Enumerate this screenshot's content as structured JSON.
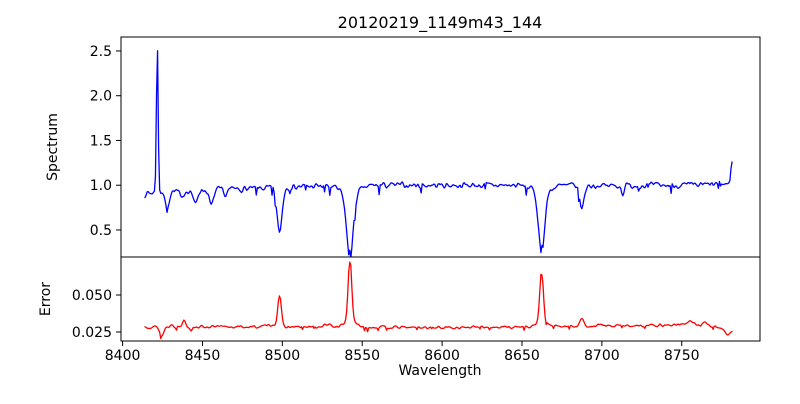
{
  "figure": {
    "title": "20120219_1149m43_144",
    "background": "#ffffff"
  },
  "chart_data": {
    "type": "line",
    "title": "20120219_1149m43_144",
    "xlabel": "Wavelength",
    "grid": false,
    "legend": null,
    "colors": {
      "spectrum": "#0000ff",
      "error": "#ff0000",
      "axis": "#000000"
    },
    "subplots": [
      {
        "name": "spectrum",
        "ylabel": "Spectrum",
        "line_color": "#0000ff",
        "xlim": [
          8399,
          8799
        ],
        "ylim": [
          0.198,
          2.656
        ],
        "yticks": {
          "values": [
            0.5,
            1.0,
            1.5,
            2.0,
            2.5
          ],
          "labels": [
            "0.5",
            "1.0",
            "1.5",
            "2.0",
            "2.5"
          ]
        },
        "xticks": {
          "values": [],
          "labels": []
        },
        "data_x_range": [
          8414,
          8781.5
        ],
        "baseline_level": 0.97,
        "key_points": [
          [
            8414,
            0.9
          ],
          [
            8421.7,
            2.51
          ],
          [
            8427.8,
            0.76
          ],
          [
            8445.5,
            0.8
          ],
          [
            8455.5,
            0.78
          ],
          [
            8498.2,
            0.46
          ],
          [
            8542.3,
            0.27
          ],
          [
            8662.3,
            0.33
          ],
          [
            8687.5,
            0.75
          ],
          [
            8781.3,
            1.26
          ]
        ],
        "synthesis": {
          "n_points": 560,
          "seed": 7,
          "noise_amp": 0.045,
          "dip_prob": 0.05,
          "dip_scale": 1.6,
          "baseline": [
            [
              8414,
              0.905
            ],
            [
              8425,
              0.93
            ],
            [
              8450,
              0.945
            ],
            [
              8480,
              0.96
            ],
            [
              8510,
              0.985
            ],
            [
              8560,
              1.0
            ],
            [
              8620,
              1.0
            ],
            [
              8700,
              0.995
            ],
            [
              8760,
              1.0
            ],
            [
              8781.5,
              1.02
            ]
          ],
          "features": [
            {
              "c": 8421.7,
              "s": 0.55,
              "a": 1.58,
              "anchor": true
            },
            {
              "c": 8427.8,
              "s": 1.2,
              "a": -0.19
            },
            {
              "c": 8437.0,
              "s": 1.0,
              "a": -0.1
            },
            {
              "c": 8445.5,
              "s": 1.2,
              "a": -0.16
            },
            {
              "c": 8455.5,
              "s": 1.3,
              "a": -0.18
            },
            {
              "c": 8464.0,
              "s": 0.9,
              "a": -0.08
            },
            {
              "c": 8498.2,
              "s": 1.6,
              "a": -0.5,
              "anchor": true
            },
            {
              "c": 8542.3,
              "s": 2.0,
              "a": -0.72,
              "anchor": true
            },
            {
              "c": 8542.3,
              "s": 5.5,
              "a": -0.1
            },
            {
              "c": 8662.3,
              "s": 1.9,
              "a": -0.67,
              "anchor": true
            },
            {
              "c": 8662.3,
              "s": 5.0,
              "a": -0.08
            },
            {
              "c": 8687.5,
              "s": 1.3,
              "a": -0.26
            },
            {
              "c": 8713.0,
              "s": 0.8,
              "a": -0.09
            },
            {
              "c": 8781.3,
              "s": 0.5,
              "a": 0.24,
              "anchor": true
            }
          ]
        }
      },
      {
        "name": "error",
        "ylabel": "Error",
        "line_color": "#ff0000",
        "xlim": [
          8399,
          8799
        ],
        "ylim": [
          0.0189,
          0.0757
        ],
        "yticks": {
          "values": [
            0.025,
            0.05
          ],
          "labels": [
            "0.025",
            "0.050"
          ]
        },
        "xticks": {
          "values": [
            8400,
            8450,
            8500,
            8550,
            8600,
            8650,
            8700,
            8750
          ],
          "labels": [
            "8400",
            "8450",
            "8500",
            "8550",
            "8600",
            "8650",
            "8700",
            "8750"
          ]
        },
        "data_x_range": [
          8414,
          8781.5
        ],
        "baseline_level": 0.028,
        "key_points": [
          [
            8424.5,
            0.022
          ],
          [
            8438.5,
            0.033
          ],
          [
            8498.2,
            0.05
          ],
          [
            8542.3,
            0.072
          ],
          [
            8662.3,
            0.064
          ],
          [
            8687.5,
            0.033
          ],
          [
            8755,
            0.032
          ],
          [
            8781,
            0.024
          ]
        ],
        "synthesis": {
          "n_points": 560,
          "seed": 13,
          "noise_amp": 0.0012,
          "dip_prob": 0.03,
          "dip_scale": 1.5,
          "baseline": [
            [
              8414,
              0.0285
            ],
            [
              8460,
              0.0285
            ],
            [
              8520,
              0.0283
            ],
            [
              8600,
              0.028
            ],
            [
              8660,
              0.0285
            ],
            [
              8700,
              0.029
            ],
            [
              8745,
              0.0298
            ],
            [
              8770,
              0.0288
            ],
            [
              8781.5,
              0.0262
            ]
          ],
          "features": [
            {
              "c": 8424.5,
              "s": 1.2,
              "a": -0.0062,
              "anchor": true
            },
            {
              "c": 8431.0,
              "s": 0.8,
              "a": 0.002
            },
            {
              "c": 8438.5,
              "s": 1.0,
              "a": 0.0048
            },
            {
              "c": 8443.0,
              "s": 0.8,
              "a": -0.002
            },
            {
              "c": 8493.0,
              "s": 3.0,
              "a": 0.0015
            },
            {
              "c": 8498.2,
              "s": 1.1,
              "a": 0.021,
              "anchor": true
            },
            {
              "c": 8528.0,
              "s": 2.0,
              "a": 0.0018
            },
            {
              "c": 8542.3,
              "s": 1.1,
              "a": 0.044,
              "anchor": true
            },
            {
              "c": 8542.3,
              "s": 4.0,
              "a": 0.0035
            },
            {
              "c": 8662.3,
              "s": 1.1,
              "a": 0.035,
              "anchor": true
            },
            {
              "c": 8662.3,
              "s": 3.5,
              "a": 0.003
            },
            {
              "c": 8687.5,
              "s": 1.3,
              "a": 0.005
            },
            {
              "c": 8699.0,
              "s": 1.0,
              "a": 0.0015
            },
            {
              "c": 8755.0,
              "s": 2.5,
              "a": 0.0028
            },
            {
              "c": 8765.0,
              "s": 1.5,
              "a": 0.0022
            },
            {
              "c": 8779.0,
              "s": 1.5,
              "a": -0.004
            }
          ]
        }
      }
    ]
  }
}
